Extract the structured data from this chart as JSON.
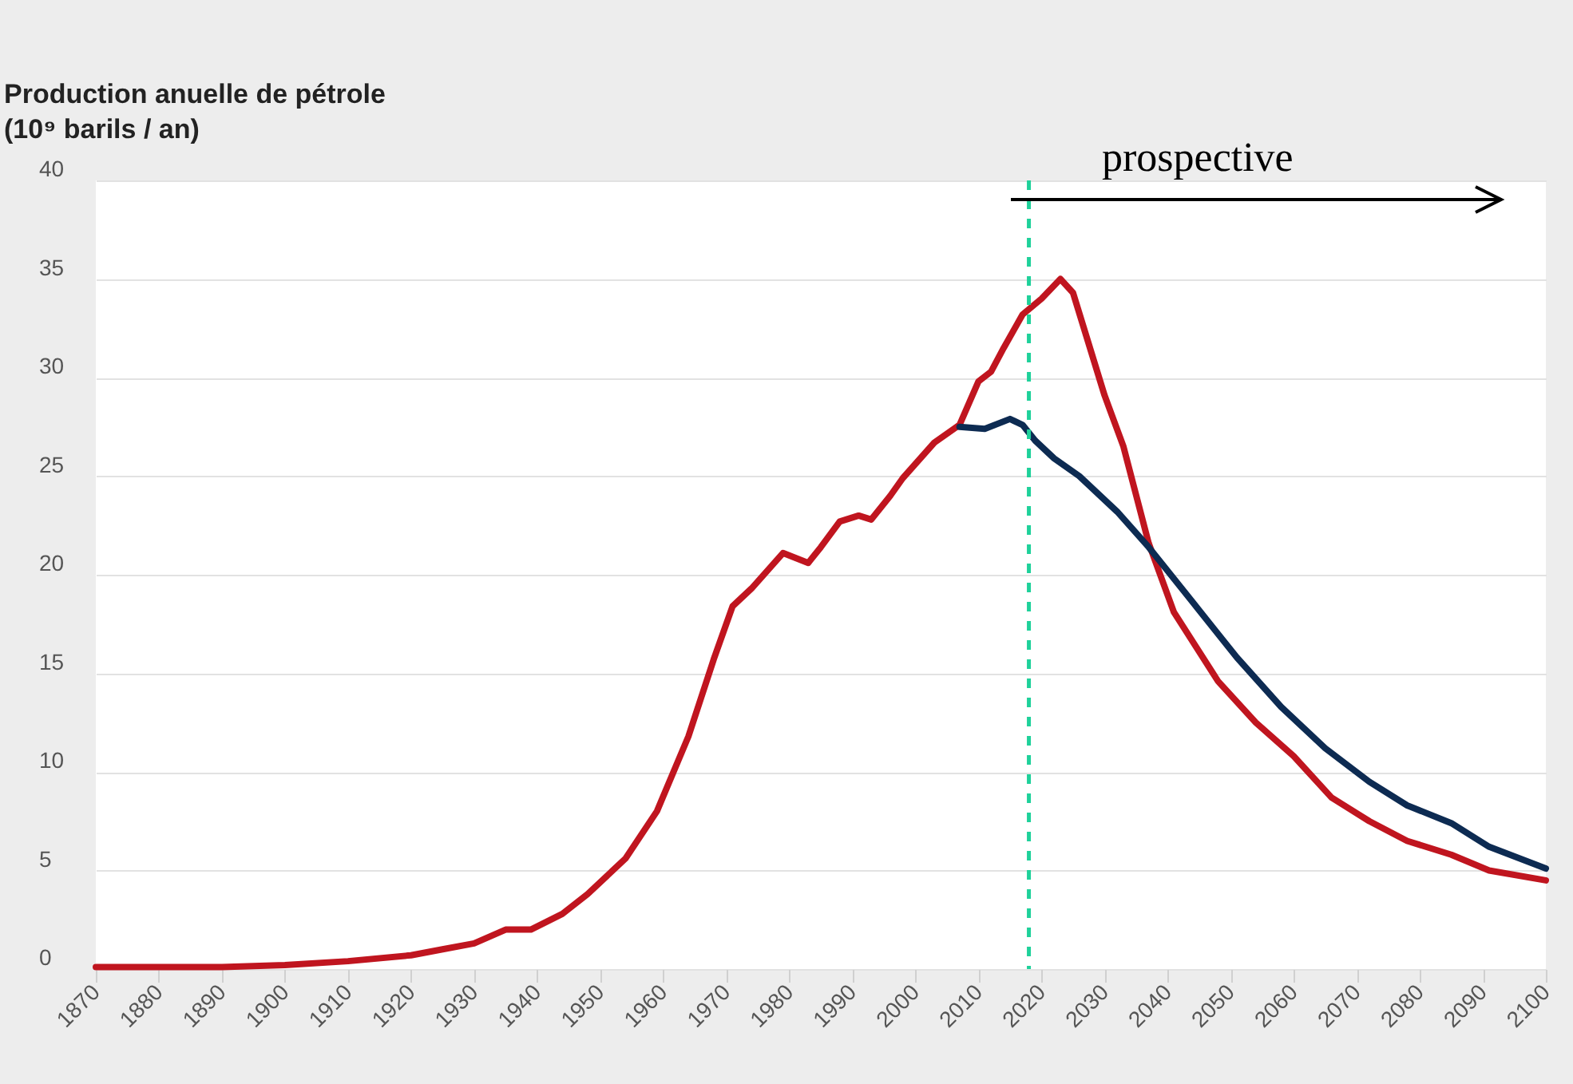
{
  "chart_data": {
    "type": "line",
    "ylabel": "Production anuelle de pétrole\n(10⁹ barils / an)",
    "annotations": [
      "prospective"
    ],
    "xlim": [
      1870,
      2100
    ],
    "xticks": [
      1870,
      1880,
      1890,
      1900,
      1910,
      1920,
      1930,
      1940,
      1950,
      1960,
      1970,
      1980,
      1990,
      2000,
      2010,
      2020,
      2030,
      2040,
      2050,
      2060,
      2070,
      2080,
      2090,
      2100
    ],
    "ylim": [
      0,
      40
    ],
    "yticks": [
      0,
      5,
      10,
      15,
      20,
      25,
      30,
      35,
      40
    ],
    "grid": "y",
    "legend": false,
    "line_style": "solid",
    "marker": "none",
    "ref_lines": [
      {
        "axis": "x",
        "value": 2018,
        "color": "#1fd19a",
        "line_style": "dashed"
      }
    ],
    "series": [
      {
        "color": "#c0151f",
        "x": [
          1870,
          1880,
          1890,
          1900,
          1910,
          1920,
          1925,
          1930,
          1935,
          1939,
          1944,
          1948,
          1954,
          1959,
          1964,
          1968,
          1971,
          1974,
          1979,
          1983,
          1985,
          1988,
          1991,
          1993,
          1996,
          1998,
          2003,
          2007,
          2010,
          2012,
          2014,
          2017,
          2020,
          2023,
          2025,
          2030,
          2033,
          2037,
          2041,
          2048,
          2054,
          2060,
          2066,
          2072,
          2078,
          2085,
          2091,
          2100
        ],
        "values": [
          0.1,
          0.1,
          0.1,
          0.2,
          0.4,
          0.7,
          1.0,
          1.3,
          2.0,
          2.0,
          2.8,
          3.8,
          5.6,
          8.0,
          11.8,
          15.7,
          18.4,
          19.3,
          21.1,
          20.6,
          21.4,
          22.7,
          23.0,
          22.8,
          24.0,
          24.9,
          26.7,
          27.6,
          29.8,
          30.3,
          31.5,
          33.2,
          34.0,
          35.0,
          34.3,
          29.1,
          26.5,
          21.6,
          18.1,
          14.6,
          12.5,
          10.8,
          8.7,
          7.5,
          6.5,
          5.8,
          5.0,
          4.5
        ]
      },
      {
        "color": "#0d2b52",
        "x": [
          2007,
          2011,
          2015,
          2017,
          2019,
          2022,
          2026,
          2032,
          2037,
          2044,
          2051,
          2058,
          2065,
          2072,
          2078,
          2085,
          2091,
          2100
        ],
        "values": [
          27.5,
          27.4,
          27.9,
          27.6,
          26.8,
          25.9,
          25.0,
          23.2,
          21.4,
          18.6,
          15.8,
          13.3,
          11.2,
          9.5,
          8.3,
          7.4,
          6.2,
          5.1
        ]
      }
    ]
  }
}
